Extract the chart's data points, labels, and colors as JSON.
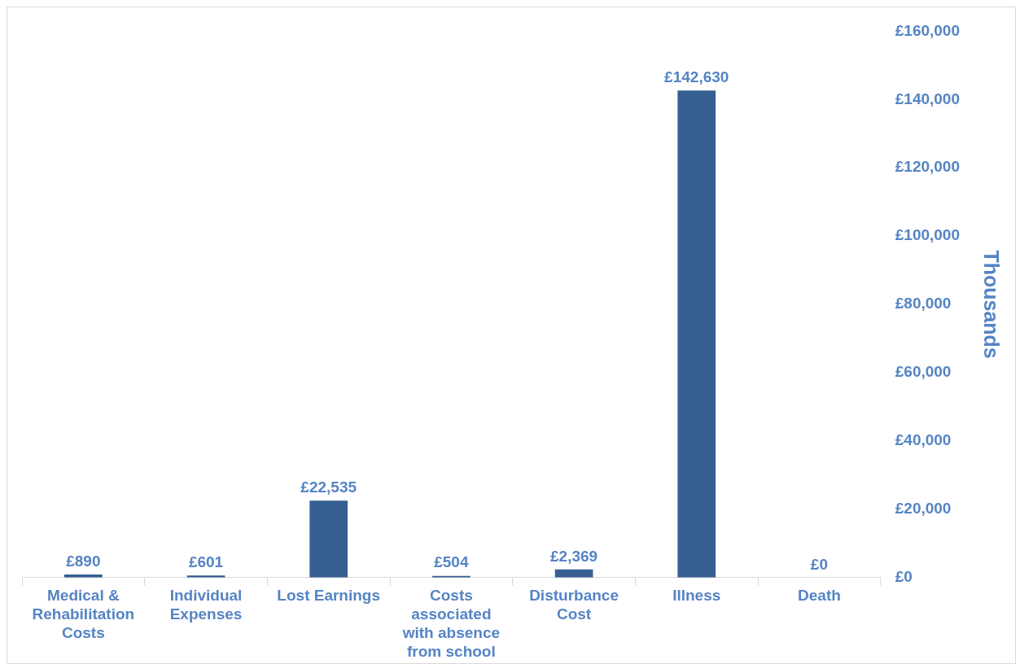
{
  "chart_data": {
    "type": "bar",
    "ylabel": "Thousands",
    "categories": [
      "Medical & Rehabilitation Costs",
      "Individual Expenses",
      "Lost Earnings",
      "Costs associated with absence from school",
      "Disturbance Cost",
      "Illness",
      "Death"
    ],
    "values": [
      890,
      601,
      22535,
      504,
      2369,
      142630,
      0
    ],
    "value_labels": [
      "£890",
      "£601",
      "£22,535",
      "£504",
      "£2,369",
      "£142,630",
      "£0"
    ],
    "color": "#365f91",
    "ylim": [
      0,
      160000
    ],
    "yticks": [
      {
        "value": 0,
        "label": "£0"
      },
      {
        "value": 20000,
        "label": "£20,000"
      },
      {
        "value": 40000,
        "label": "£40,000"
      },
      {
        "value": 60000,
        "label": "£60,000"
      },
      {
        "value": 80000,
        "label": "£80,000"
      },
      {
        "value": 100000,
        "label": "£100,000"
      },
      {
        "value": 120000,
        "label": "£120,000"
      },
      {
        "value": 140000,
        "label": "£140,000"
      },
      {
        "value": 160000,
        "label": "£160,000"
      }
    ],
    "grid": false,
    "legend": false
  }
}
